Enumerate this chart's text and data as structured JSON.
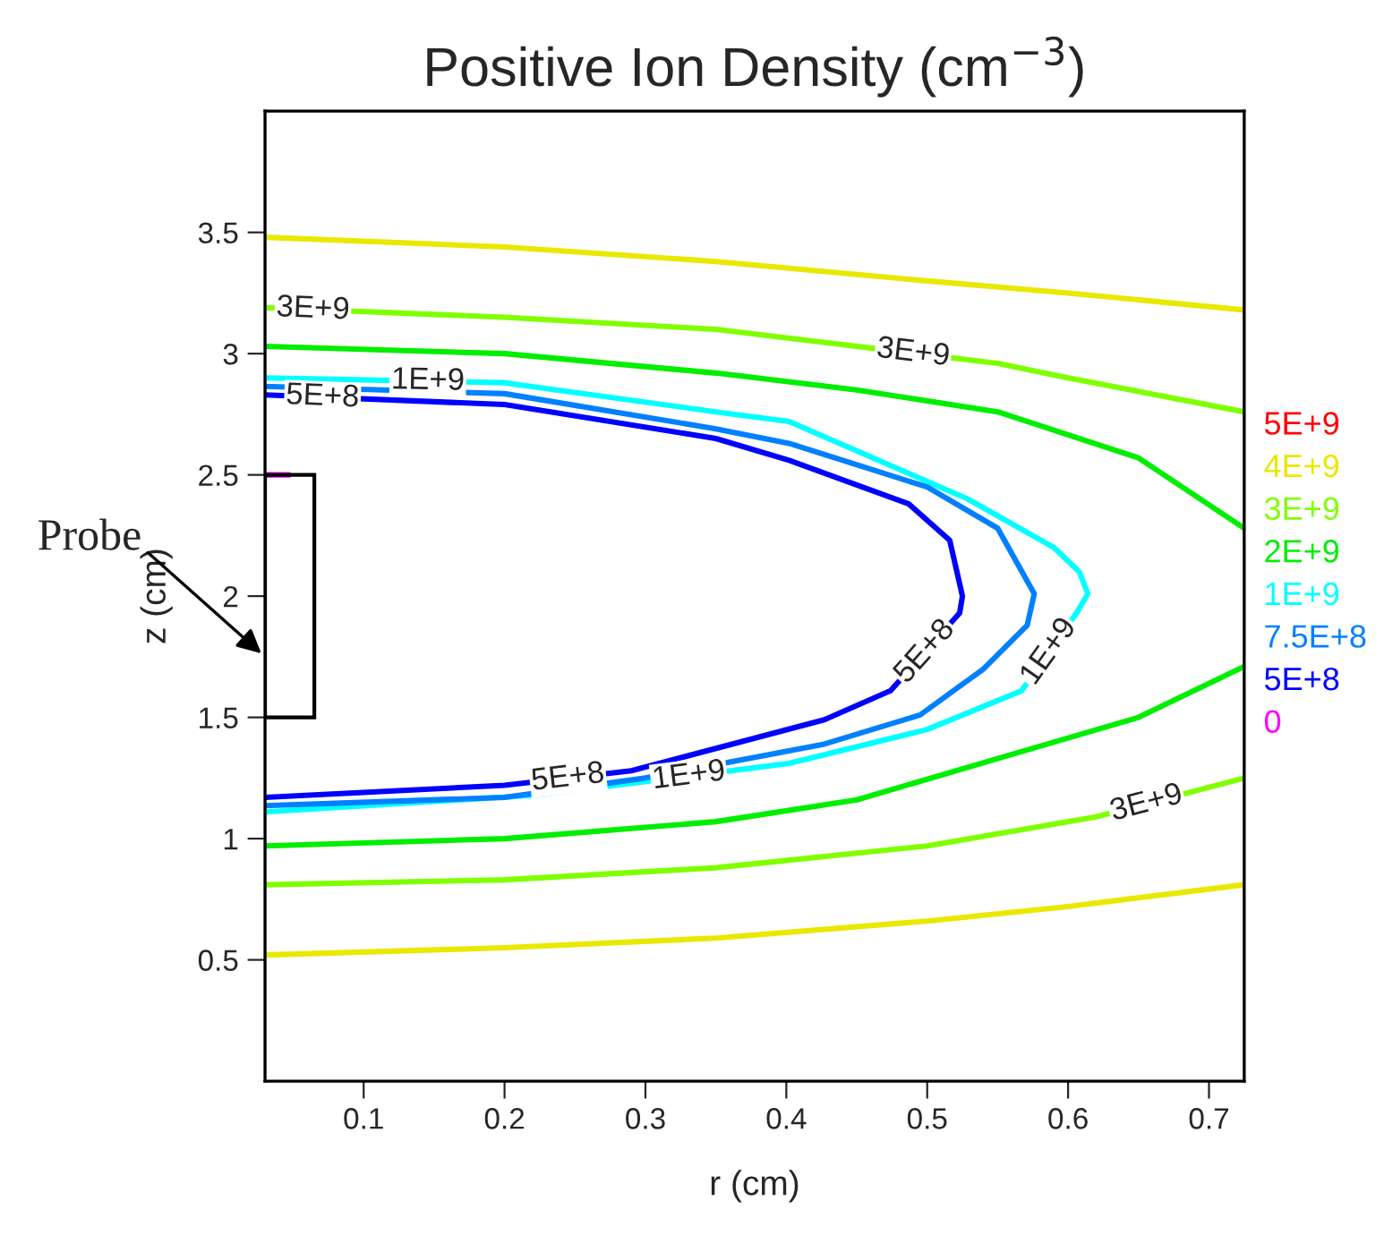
{
  "chart_data": {
    "type": "line",
    "title": "Positive Ion Density (cm$^{−3}$)",
    "xlabel": "r (cm)",
    "ylabel": "z (cm)",
    "xlim": [
      0.03,
      0.725
    ],
    "ylim": [
      0,
      4.0
    ],
    "xticks": [
      0.1,
      0.2,
      0.3,
      0.4,
      0.5,
      0.6,
      0.7
    ],
    "yticks": [
      0.5,
      1,
      1.5,
      2,
      2.5,
      3,
      3.5
    ],
    "grid": false,
    "legend": "right",
    "marker": "none",
    "line_style": "solid",
    "series": [
      {
        "name": "5E+9",
        "color": "#ff0000"
      },
      {
        "name": "4E+9",
        "color": "#e8e800",
        "x": [
          0.03,
          0.2,
          0.35,
          0.5,
          0.6,
          0.725
        ],
        "values": [
          3.48,
          3.44,
          3.38,
          3.3,
          3.25,
          3.18
        ]
      },
      {
        "color": "#e8e800",
        "x": [
          0.03,
          0.2,
          0.35,
          0.5,
          0.6,
          0.725
        ],
        "values": [
          0.52,
          0.55,
          0.59,
          0.66,
          0.72,
          0.81
        ]
      },
      {
        "name": "3E+9",
        "color": "#80ff00",
        "x": [
          0.03,
          0.2,
          0.35,
          0.55,
          0.6,
          0.725
        ],
        "values": [
          3.19,
          3.15,
          3.1,
          2.96,
          2.9,
          2.76
        ]
      },
      {
        "color": "#80ff00",
        "x": [
          0.03,
          0.2,
          0.35,
          0.5,
          0.62,
          0.725
        ],
        "values": [
          0.81,
          0.83,
          0.88,
          0.97,
          1.09,
          1.25
        ]
      },
      {
        "name": "2E+9",
        "color": "#00ee00",
        "x": [
          0.03,
          0.2,
          0.35,
          0.45,
          0.55,
          0.65,
          0.725
        ],
        "values": [
          3.03,
          3.0,
          2.92,
          2.85,
          2.76,
          2.57,
          2.28
        ]
      },
      {
        "color": "#00ee00",
        "x": [
          0.03,
          0.2,
          0.35,
          0.45,
          0.55,
          0.65,
          0.725
        ],
        "values": [
          0.97,
          1.0,
          1.07,
          1.16,
          1.33,
          1.5,
          1.71
        ]
      },
      {
        "name": "1E+9",
        "color": "#00ffff",
        "x": [
          0.03,
          0.2,
          0.35,
          0.402,
          0.529,
          0.59,
          0.608,
          0.614,
          0.606,
          0.567,
          0.5,
          0.402,
          0.224,
          0.03
        ],
        "values": [
          2.9,
          2.88,
          2.76,
          2.72,
          2.4,
          2.2,
          2.1,
          2.01,
          1.93,
          1.61,
          1.45,
          1.31,
          1.18,
          1.11
        ]
      },
      {
        "name": "7.5E+8",
        "color": "#0080ff",
        "x": [
          0.03,
          0.2,
          0.35,
          0.402,
          0.5,
          0.55,
          0.576,
          0.571,
          0.54,
          0.495,
          0.427,
          0.3,
          0.2,
          0.03
        ],
        "values": [
          2.865,
          2.835,
          2.69,
          2.63,
          2.45,
          2.28,
          2.01,
          1.88,
          1.7,
          1.51,
          1.39,
          1.25,
          1.17,
          1.136
        ]
      },
      {
        "name": "5E+8",
        "color": "#0000ff",
        "x": [
          0.03,
          0.2,
          0.35,
          0.402,
          0.487,
          0.516,
          0.525,
          0.523,
          0.474,
          0.427,
          0.29,
          0.2,
          0.03
        ],
        "values": [
          2.83,
          2.79,
          2.65,
          2.56,
          2.38,
          2.23,
          2.0,
          1.93,
          1.61,
          1.49,
          1.28,
          1.22,
          1.17
        ]
      },
      {
        "name": "0",
        "color": "#ff00ff",
        "x": [
          0.03,
          0.047
        ],
        "values": [
          2.5,
          2.5
        ]
      }
    ],
    "annotations": [
      "3E+9",
      "3E+9",
      "5E+8",
      "1E+9",
      "5E+8",
      "1E+9",
      "5E+8",
      "1E+9",
      "3E+9",
      "Probe"
    ]
  }
}
